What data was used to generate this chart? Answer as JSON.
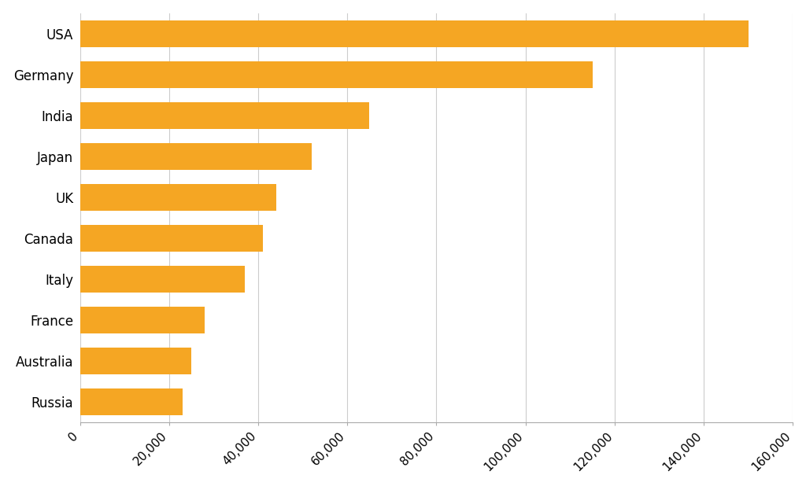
{
  "categories": [
    "USA",
    "Germany",
    "India",
    "Japan",
    "UK",
    "Canada",
    "Italy",
    "France",
    "Australia",
    "Russia"
  ],
  "values": [
    150000,
    115000,
    65000,
    52000,
    44000,
    41000,
    37000,
    28000,
    25000,
    23000
  ],
  "bar_color": "#F5A623",
  "background_color": "#FFFFFF",
  "xlim": [
    0,
    160000
  ],
  "xticks": [
    0,
    20000,
    40000,
    60000,
    80000,
    100000,
    120000,
    140000,
    160000
  ],
  "grid_color": "#CCCCCC",
  "bar_height": 0.65,
  "figsize": [
    10.24,
    6.18
  ],
  "dpi": 100,
  "tick_fontsize": 11,
  "ylabel_fontsize": 12
}
